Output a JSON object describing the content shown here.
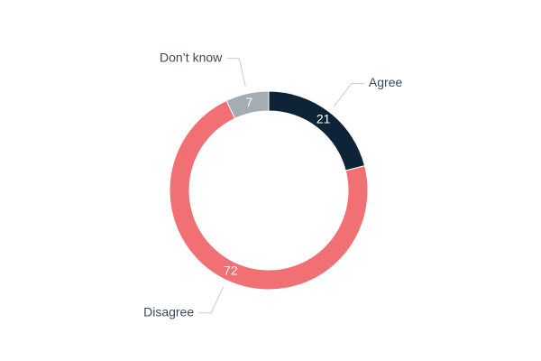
{
  "chart_data": {
    "type": "donut",
    "categories": [
      "Agree",
      "Disagree",
      "Don’t know"
    ],
    "values": [
      21,
      72,
      7
    ],
    "colors": [
      "#0d2338",
      "#f07073",
      "#a3adb3"
    ]
  }
}
